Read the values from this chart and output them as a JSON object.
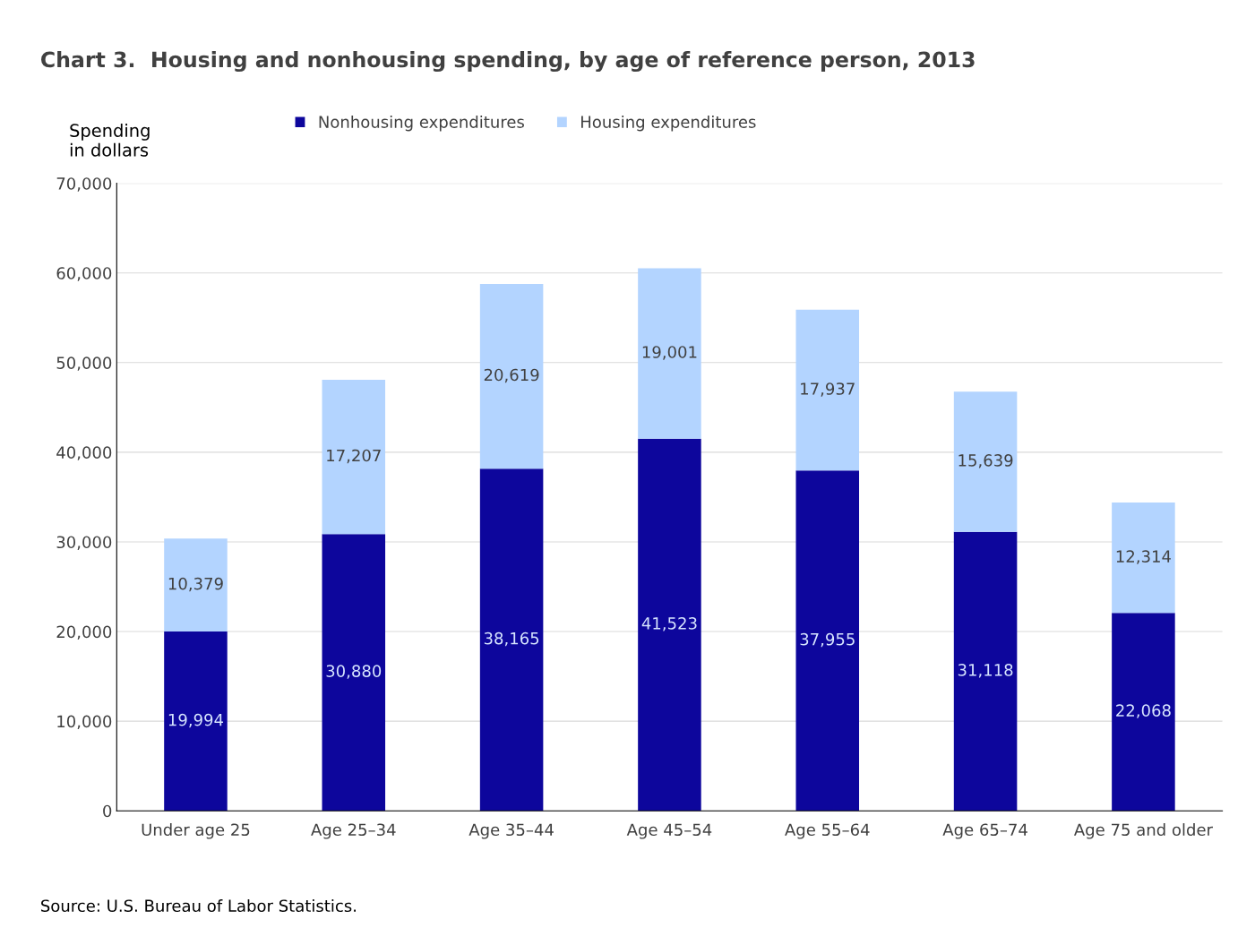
{
  "chart_data": {
    "type": "bar",
    "title": "Chart 3.  Housing and nonhousing spending, by age of reference person, 2013",
    "ylabel": "Spending\nin dollars",
    "categories": [
      "Under age 25",
      "Age 25–34",
      "Age 35–44",
      "Age 45–54",
      "Age 55–64",
      "Age 65–74",
      "Age 75 and older"
    ],
    "series": [
      {
        "name": "Nonhousing expenditures",
        "color": "#0d069c",
        "values": [
          19994,
          30880,
          38165,
          41523,
          37955,
          31118,
          22068
        ],
        "value_labels": [
          "19,994",
          "30,880",
          "38,165",
          "41,523",
          "37,955",
          "31,118",
          "22,068"
        ]
      },
      {
        "name": "Housing expenditures",
        "color": "#b3d4ff",
        "values": [
          10379,
          17207,
          20619,
          19001,
          17937,
          15639,
          12314
        ],
        "value_labels": [
          "10,379",
          "17,207",
          "20,619",
          "19,001",
          "17,937",
          "15,639",
          "12,314"
        ]
      }
    ],
    "stacked": true,
    "ylim": [
      0,
      70000
    ],
    "yticks": [
      0,
      {
        "value": 10000,
        "label": "10,000"
      },
      {
        "value": 20000,
        "label": "20,000"
      },
      {
        "value": 30000,
        "label": "30,000"
      },
      {
        "value": 40000,
        "label": "40,000"
      },
      {
        "value": 50000,
        "label": "50,000"
      },
      {
        "value": 60000,
        "label": "60,000"
      },
      {
        "value": 70000,
        "label": "70,000"
      }
    ],
    "grid": "y",
    "legend": "top",
    "annotations": [
      "Source: U.S. Bureau of Labor Statistics."
    ]
  }
}
